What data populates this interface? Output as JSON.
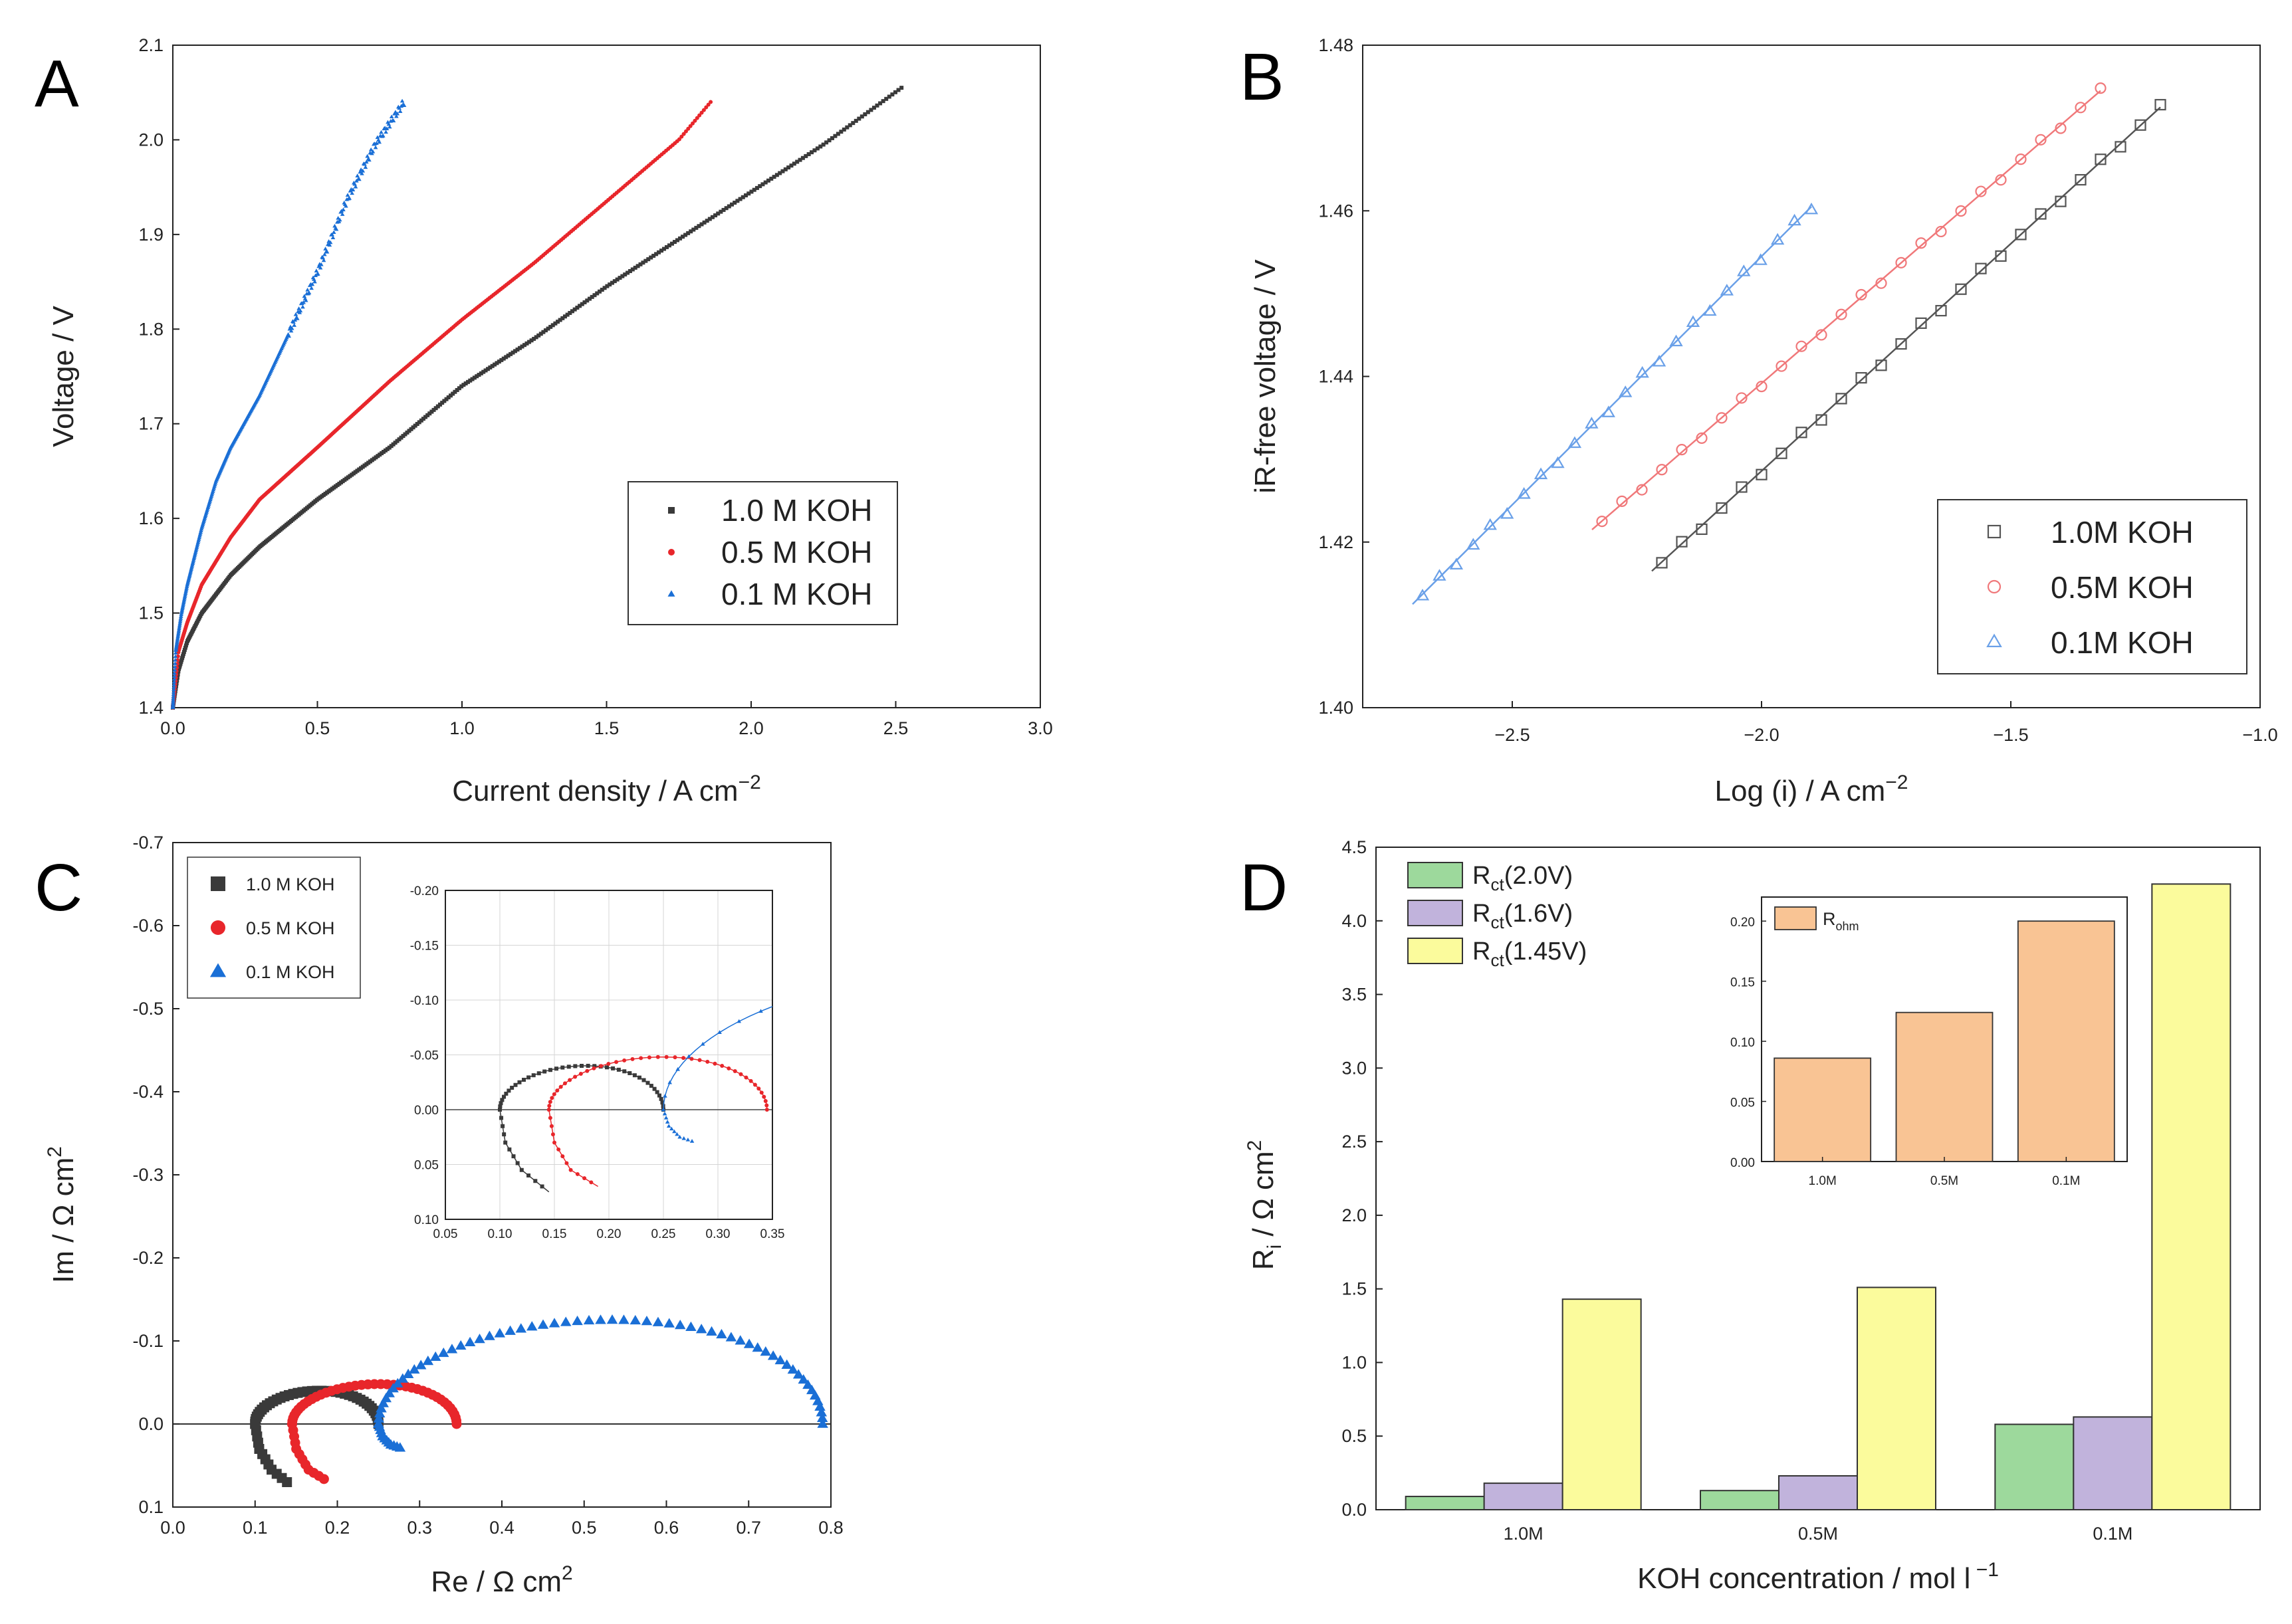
{
  "chart_data": [
    {
      "id": "A",
      "type": "scatter",
      "panel_label": "A",
      "xlabel": "Current density / A cm",
      "xlabel_sup": "−2",
      "ylabel": "Voltage / V",
      "xlim": [
        0.0,
        3.0
      ],
      "ylim": [
        1.4,
        2.1
      ],
      "xticks": [
        "0.0",
        "0.5",
        "1.0",
        "1.5",
        "2.0",
        "2.5",
        "3.0"
      ],
      "yticks": [
        "1.4",
        "1.5",
        "1.6",
        "1.7",
        "1.8",
        "1.9",
        "2.0",
        "2.1"
      ],
      "legend_position": "lower-right",
      "series": [
        {
          "name": "1.0 M KOH",
          "color": "#3a3a3a",
          "marker": "square",
          "x": [
            0.0,
            0.02,
            0.05,
            0.1,
            0.2,
            0.3,
            0.5,
            0.75,
            1.0,
            1.25,
            1.5,
            1.75,
            2.0,
            2.25,
            2.52
          ],
          "y": [
            1.4,
            1.44,
            1.47,
            1.5,
            1.54,
            1.57,
            1.62,
            1.675,
            1.74,
            1.79,
            1.845,
            1.895,
            1.945,
            1.995,
            2.055
          ]
        },
        {
          "name": "0.5 M KOH",
          "color": "#e8262b",
          "marker": "circle",
          "x": [
            0.0,
            0.02,
            0.05,
            0.1,
            0.2,
            0.3,
            0.5,
            0.75,
            1.0,
            1.25,
            1.5,
            1.75,
            1.86
          ],
          "y": [
            1.4,
            1.46,
            1.49,
            1.53,
            1.58,
            1.62,
            1.675,
            1.745,
            1.81,
            1.87,
            1.935,
            2.0,
            2.04
          ]
        },
        {
          "name": "0.1 M KOH",
          "color": "#1a6fd6",
          "marker": "triangle",
          "x": [
            0.0,
            0.01,
            0.03,
            0.05,
            0.1,
            0.15,
            0.2,
            0.3,
            0.4,
            0.5,
            0.6,
            0.7,
            0.8
          ],
          "y": [
            1.4,
            1.46,
            1.5,
            1.53,
            1.59,
            1.64,
            1.675,
            1.73,
            1.795,
            1.86,
            1.935,
            1.995,
            2.04
          ]
        }
      ]
    },
    {
      "id": "B",
      "type": "scatter",
      "panel_label": "B",
      "xlabel": "Log (i) / A cm",
      "xlabel_sup": "−2",
      "ylabel": "iR-free voltage / V",
      "xlim": [
        -2.8,
        -1.0
      ],
      "ylim": [
        1.4,
        1.48
      ],
      "xticks": [
        "−2.5",
        "−2.0",
        "−1.5",
        "−1.0"
      ],
      "xtick_values": [
        -2.5,
        -2.0,
        -1.5,
        -1.0
      ],
      "yticks": [
        "1.40",
        "1.42",
        "1.44",
        "1.46",
        "1.48"
      ],
      "legend_position": "lower-right",
      "series": [
        {
          "name": "1.0M KOH",
          "color": "#555555",
          "marker": "open-square",
          "x_range": [
            -2.2,
            -1.2
          ],
          "y_range": [
            1.4175,
            1.4725
          ],
          "n": 26
        },
        {
          "name": "0.5M KOH",
          "color": "#f0787a",
          "marker": "open-circle",
          "x_range": [
            -2.32,
            -1.32
          ],
          "y_range": [
            1.4225,
            1.4745
          ],
          "n": 26
        },
        {
          "name": "0.1M KOH",
          "color": "#6aa0e8",
          "marker": "open-triangle",
          "x_range": [
            -2.68,
            -1.9
          ],
          "y_range": [
            1.4135,
            1.4605
          ],
          "n": 24
        }
      ]
    },
    {
      "id": "C",
      "type": "scatter",
      "panel_label": "C",
      "xlabel": "Re  /  Ω cm",
      "xlabel_sup": "2",
      "ylabel": "Im  /  Ω cm",
      "ylabel_sup": "2",
      "xlim": [
        0.0,
        0.8
      ],
      "ylim": [
        0.1,
        -0.7
      ],
      "xticks": [
        "0.0",
        "0.1",
        "0.2",
        "0.3",
        "0.4",
        "0.5",
        "0.6",
        "0.7",
        "0.8"
      ],
      "yticks": [
        "0.1",
        "0.0",
        "-0.1",
        "-0.2",
        "-0.3",
        "-0.4",
        "-0.5",
        "-0.6",
        "-0.7"
      ],
      "legend_position": "top-left",
      "series": [
        {
          "name": "1.0 M KOH",
          "color": "#3a3a3a",
          "marker": "square",
          "arc": {
            "start": 0.1,
            "end": 0.25,
            "peak": -0.04
          },
          "tail": [
            [
              0.1,
              0.0
            ],
            [
              0.105,
              0.03
            ],
            [
              0.12,
              0.055
            ],
            [
              0.145,
              0.075
            ]
          ]
        },
        {
          "name": "0.5 M KOH",
          "color": "#e8262b",
          "marker": "circle",
          "arc": {
            "start": 0.145,
            "end": 0.345,
            "peak": -0.048
          },
          "tail": [
            [
              0.145,
              0.0
            ],
            [
              0.15,
              0.03
            ],
            [
              0.165,
              0.055
            ],
            [
              0.19,
              0.07
            ]
          ]
        },
        {
          "name": "0.1 M KOH",
          "color": "#1a6fd6",
          "marker": "triangle",
          "arc": {
            "start": 0.25,
            "end": 0.79,
            "peak": -0.125
          },
          "tail": [
            [
              0.25,
              0.0
            ],
            [
              0.255,
              0.015
            ],
            [
              0.265,
              0.025
            ],
            [
              0.28,
              0.03
            ]
          ]
        }
      ],
      "inset": {
        "xlim": [
          0.05,
          0.35
        ],
        "ylim": [
          0.1,
          -0.2
        ],
        "xticks": [
          "0.05",
          "0.10",
          "0.15",
          "0.20",
          "0.25",
          "0.30",
          "0.35"
        ],
        "yticks": [
          "-0.20",
          "-0.15",
          "-0.10",
          "-0.05",
          "0.00",
          "0.05",
          "0.10"
        ]
      }
    },
    {
      "id": "D",
      "type": "bar",
      "panel_label": "D",
      "xlabel": "KOH concentration / mol l",
      "xlabel_sup": "−1",
      "ylabel": "R",
      "ylabel_sub": "i",
      "ylabel_rest": " / Ω cm",
      "ylabel_sup": "2",
      "categories": [
        "1.0M",
        "0.5M",
        "0.1M"
      ],
      "ylim": [
        0.0,
        4.5
      ],
      "yticks": [
        "0.0",
        "0.5",
        "1.0",
        "1.5",
        "2.0",
        "2.5",
        "3.0",
        "3.5",
        "4.0",
        "4.5"
      ],
      "legend_position": "top-left",
      "series": [
        {
          "name": "R",
          "sub": "ct",
          "suffix": "(2.0V)",
          "color": "#9dd99c",
          "values": [
            0.09,
            0.13,
            0.58
          ]
        },
        {
          "name": "R",
          "sub": "ct",
          "suffix": "(1.6V)",
          "color": "#c1b3dc",
          "values": [
            0.18,
            0.23,
            0.63
          ]
        },
        {
          "name": "R",
          "sub": "ct",
          "suffix": "(1.45V)",
          "color": "#fbfb9c",
          "values": [
            1.43,
            1.51,
            4.25
          ]
        }
      ],
      "inset": {
        "type": "bar",
        "categories": [
          "1.0M",
          "0.5M",
          "0.1M"
        ],
        "ylim": [
          0.0,
          0.22
        ],
        "yticks": [
          "0.00",
          "0.05",
          "0.10",
          "0.15",
          "0.20"
        ],
        "series": [
          {
            "name": "R",
            "sub": "ohm",
            "color": "#f9c494",
            "values": [
              0.086,
              0.124,
              0.2
            ]
          }
        ]
      }
    }
  ]
}
